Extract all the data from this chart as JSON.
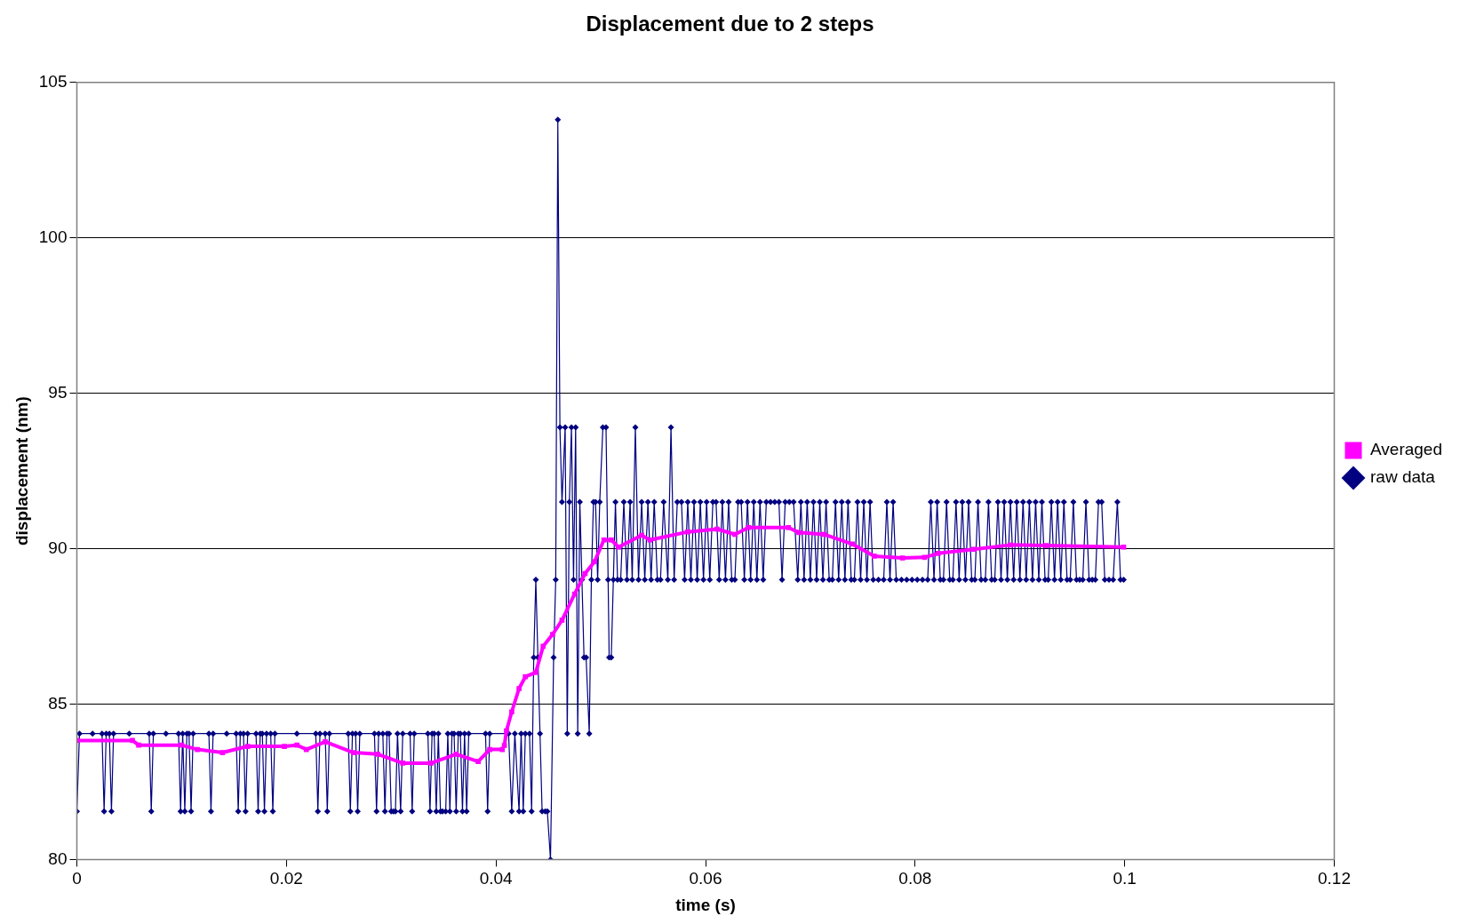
{
  "chart_data": {
    "type": "line",
    "title": "Displacement due to 2 steps",
    "xlabel": "time (s)",
    "ylabel": "displacement (nm)",
    "xlim": [
      0,
      0.12
    ],
    "xticks": [
      0,
      0.02,
      0.04,
      0.06,
      0.08,
      0.1,
      0.12
    ],
    "ylim": [
      80,
      105
    ],
    "yticks": [
      80,
      85,
      90,
      95,
      100,
      105
    ],
    "grid": "y",
    "legend": "right",
    "line_style": "solid",
    "series": [
      {
        "name": "raw data",
        "color": "#000080",
        "marker": "diamond",
        "x": [
          0,
          0.00025,
          0.0015,
          0.0024,
          0.0026,
          0.0028,
          0.0031,
          0.0033,
          0.0035,
          0.005,
          0.0069,
          0.0071,
          0.0073,
          0.0085,
          0.0097,
          0.0099,
          0.0101,
          0.0103,
          0.0105,
          0.0107,
          0.0109,
          0.0111,
          0.0126,
          0.0128,
          0.013,
          0.0143,
          0.0152,
          0.0154,
          0.0156,
          0.0159,
          0.0161,
          0.0163,
          0.0171,
          0.0173,
          0.0175,
          0.0177,
          0.0179,
          0.0181,
          0.0185,
          0.0187,
          0.0189,
          0.021,
          0.0228,
          0.023,
          0.0232,
          0.0237,
          0.0239,
          0.0241,
          0.0259,
          0.0261,
          0.0263,
          0.0266,
          0.0268,
          0.027,
          0.0284,
          0.0286,
          0.0288,
          0.0292,
          0.0294,
          0.0296,
          0.0298,
          0.03,
          0.0302,
          0.0304,
          0.0306,
          0.0309,
          0.0311,
          0.0318,
          0.032,
          0.0322,
          0.0335,
          0.0337,
          0.0339,
          0.0341,
          0.0343,
          0.0345,
          0.0347,
          0.0349,
          0.0352,
          0.0354,
          0.0356,
          0.0358,
          0.036,
          0.0362,
          0.0364,
          0.0366,
          0.0368,
          0.037,
          0.0372,
          0.0374,
          0.039,
          0.0392,
          0.0394,
          0.0412,
          0.0415,
          0.0418,
          0.0422,
          0.0424,
          0.0426,
          0.0428,
          0.0432,
          0.0434,
          0.0436,
          0.0438,
          0.044,
          0.0442,
          0.0444,
          0.0447,
          0.0449,
          0.0452,
          0.0455,
          0.0457,
          0.0459,
          0.0461,
          0.0463,
          0.0466,
          0.0468,
          0.047,
          0.0472,
          0.0474,
          0.0476,
          0.0478,
          0.048,
          0.0482,
          0.0484,
          0.0486,
          0.0489,
          0.0491,
          0.0493,
          0.0495,
          0.0497,
          0.0499,
          0.0502,
          0.0505,
          0.0507,
          0.0508,
          0.051,
          0.0512,
          0.0514,
          0.0516,
          0.0519,
          0.0522,
          0.0525,
          0.0528,
          0.053,
          0.0533,
          0.0536,
          0.0539,
          0.0542,
          0.0545,
          0.0548,
          0.0551,
          0.0554,
          0.0557,
          0.056,
          0.0564,
          0.0567,
          0.057,
          0.0573,
          0.0577,
          0.058,
          0.0583,
          0.0586,
          0.0589,
          0.0592,
          0.0595,
          0.0598,
          0.0601,
          0.0604,
          0.0607,
          0.061,
          0.0613,
          0.0616,
          0.0619,
          0.0622,
          0.0625,
          0.0628,
          0.0631,
          0.0634,
          0.0637,
          0.064,
          0.0643,
          0.0646,
          0.0649,
          0.0652,
          0.0655,
          0.0658,
          0.0662,
          0.0666,
          0.067,
          0.0673,
          0.0676,
          0.068,
          0.0684,
          0.0688,
          0.0691,
          0.0694,
          0.0697,
          0.07,
          0.0703,
          0.0706,
          0.0709,
          0.0712,
          0.0715,
          0.0718,
          0.0721,
          0.0724,
          0.0727,
          0.073,
          0.0733,
          0.0736,
          0.0739,
          0.0742,
          0.0745,
          0.0748,
          0.0751,
          0.0754,
          0.0757,
          0.076,
          0.0765,
          0.077,
          0.0773,
          0.0776,
          0.0779,
          0.0782,
          0.0787,
          0.0792,
          0.0797,
          0.0802,
          0.0807,
          0.0812,
          0.0815,
          0.0818,
          0.0821,
          0.0824,
          0.0827,
          0.083,
          0.0833,
          0.0836,
          0.0839,
          0.0842,
          0.0845,
          0.0848,
          0.0851,
          0.0854,
          0.0857,
          0.086,
          0.0863,
          0.0867,
          0.087,
          0.0873,
          0.0876,
          0.0879,
          0.0882,
          0.0885,
          0.0888,
          0.0891,
          0.0894,
          0.0897,
          0.09,
          0.0903,
          0.0906,
          0.0909,
          0.0912,
          0.0915,
          0.0918,
          0.0921,
          0.0924,
          0.0927,
          0.093,
          0.0933,
          0.0936,
          0.0939,
          0.0942,
          0.0945,
          0.0948,
          0.0951,
          0.0954,
          0.0957,
          0.096,
          0.0963,
          0.0966,
          0.0969,
          0.0972,
          0.0975,
          0.0978,
          0.0981,
          0.0985,
          0.0989,
          0.0993,
          0.0996,
          0.0999
        ],
        "values": [
          81.55,
          84.05,
          84.05,
          84.05,
          81.55,
          84.05,
          84.05,
          81.55,
          84.05,
          84.05,
          84.05,
          81.55,
          84.05,
          84.05,
          84.05,
          81.55,
          84.05,
          81.55,
          84.05,
          84.05,
          81.55,
          84.05,
          84.05,
          81.55,
          84.05,
          84.05,
          84.05,
          81.55,
          84.05,
          84.05,
          81.55,
          84.05,
          84.05,
          81.55,
          84.05,
          84.05,
          81.55,
          84.05,
          84.05,
          81.55,
          84.05,
          84.05,
          84.05,
          81.55,
          84.05,
          84.05,
          81.55,
          84.05,
          84.05,
          81.55,
          84.05,
          84.05,
          81.55,
          84.05,
          84.05,
          81.55,
          84.05,
          84.05,
          81.55,
          84.05,
          84.05,
          81.55,
          81.55,
          81.55,
          84.05,
          81.55,
          84.05,
          84.05,
          81.55,
          84.05,
          84.05,
          81.55,
          84.05,
          84.05,
          81.55,
          84.05,
          81.55,
          81.55,
          81.55,
          84.05,
          81.55,
          84.05,
          84.05,
          81.55,
          84.05,
          84.05,
          81.55,
          84.05,
          81.55,
          84.05,
          84.05,
          81.55,
          84.05,
          84.05,
          81.55,
          84.05,
          81.55,
          84.05,
          81.55,
          84.05,
          84.05,
          81.55,
          86.5,
          89,
          86.5,
          84.05,
          81.55,
          81.55,
          81.55,
          80,
          86.5,
          89,
          103.8,
          93.9,
          91.5,
          93.9,
          84.05,
          91.5,
          93.9,
          89,
          93.9,
          84.05,
          91.5,
          89,
          86.5,
          86.5,
          84.05,
          89,
          91.5,
          91.5,
          89,
          91.5,
          93.9,
          93.9,
          89,
          86.5,
          86.5,
          89,
          91.5,
          89,
          89,
          91.5,
          89,
          91.5,
          89,
          93.9,
          89,
          91.5,
          89,
          91.5,
          89,
          91.5,
          89,
          89,
          91.5,
          89,
          93.9,
          89,
          91.5,
          91.5,
          89,
          91.5,
          89,
          91.5,
          89,
          91.5,
          89,
          91.5,
          89,
          91.5,
          91.5,
          89,
          91.5,
          89,
          91.5,
          89,
          89,
          91.5,
          91.5,
          89,
          91.5,
          89,
          91.5,
          89,
          91.5,
          89,
          91.5,
          91.5,
          91.5,
          91.5,
          89,
          91.5,
          91.5,
          91.5,
          89,
          91.5,
          89,
          91.5,
          89,
          91.5,
          89,
          91.5,
          89,
          91.5,
          89,
          89,
          91.5,
          89,
          91.5,
          89,
          91.5,
          89,
          89,
          91.5,
          89,
          91.5,
          89,
          91.5,
          89,
          89,
          89,
          91.5,
          89,
          91.5,
          89,
          89,
          89,
          89,
          89,
          89,
          89,
          91.5,
          89,
          91.5,
          89,
          89,
          91.5,
          89,
          89,
          91.5,
          89,
          91.5,
          89,
          91.5,
          89,
          89,
          91.5,
          89,
          89,
          91.5,
          89,
          89,
          91.5,
          89,
          91.5,
          89,
          91.5,
          89,
          91.5,
          89,
          91.5,
          89,
          91.5,
          89,
          91.5,
          89,
          91.5,
          89,
          89,
          91.5,
          89,
          91.5,
          89,
          91.5,
          89,
          89,
          91.5,
          89,
          89,
          89,
          91.5,
          89,
          89,
          89,
          91.5,
          91.5,
          89,
          89,
          89,
          91.5,
          89,
          89
        ]
      },
      {
        "name": "Averaged",
        "color": "#ff00ff",
        "marker": "square",
        "x": [
          0,
          0.0053,
          0.0059,
          0.01,
          0.0115,
          0.0139,
          0.0163,
          0.0198,
          0.021,
          0.0219,
          0.0237,
          0.0264,
          0.0287,
          0.0311,
          0.0338,
          0.0362,
          0.0383,
          0.0394,
          0.0406,
          0.0408,
          0.041,
          0.0415,
          0.0422,
          0.0428,
          0.0438,
          0.0445,
          0.0454,
          0.0463,
          0.0475,
          0.0485,
          0.0494,
          0.0503,
          0.051,
          0.0517,
          0.0539,
          0.0547,
          0.0583,
          0.0611,
          0.0628,
          0.0641,
          0.0679,
          0.0689,
          0.0713,
          0.074,
          0.0761,
          0.0788,
          0.0809,
          0.0822,
          0.0856,
          0.0891,
          0.0925,
          0.0999
        ],
        "values": [
          83.83,
          83.83,
          83.68,
          83.68,
          83.54,
          83.44,
          83.64,
          83.64,
          83.68,
          83.54,
          83.79,
          83.44,
          83.39,
          83.1,
          83.1,
          83.39,
          83.15,
          83.54,
          83.54,
          83.67,
          84.14,
          84.75,
          85.5,
          85.88,
          86.02,
          86.86,
          87.24,
          87.7,
          88.54,
          89.2,
          89.58,
          90.28,
          90.28,
          90.05,
          90.43,
          90.28,
          90.54,
          90.63,
          90.46,
          90.68,
          90.68,
          90.52,
          90.46,
          90.15,
          89.76,
          89.7,
          89.72,
          89.85,
          89.98,
          90.12,
          90.1,
          90.05
        ]
      }
    ]
  }
}
